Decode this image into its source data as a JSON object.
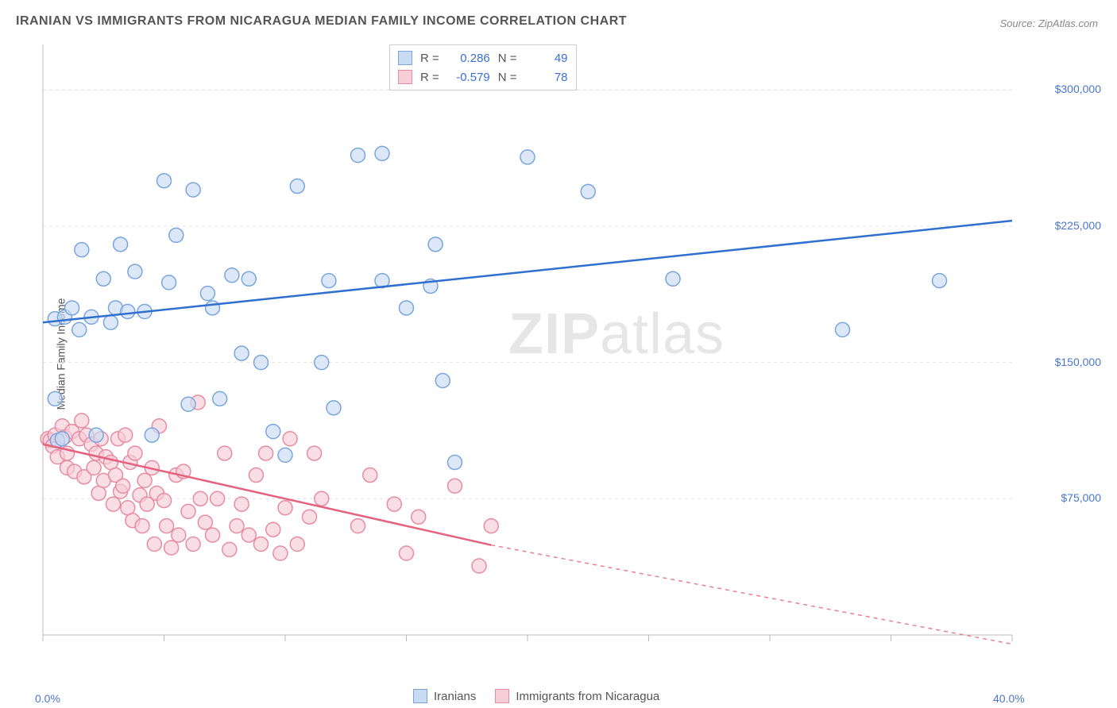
{
  "title": "IRANIAN VS IMMIGRANTS FROM NICARAGUA MEDIAN FAMILY INCOME CORRELATION CHART",
  "source": "Source: ZipAtlas.com",
  "y_axis_label": "Median Family Income",
  "watermark_bold": "ZIP",
  "watermark_rest": "atlas",
  "chart": {
    "type": "scatter",
    "background_color": "#ffffff",
    "plot_border_color": "#bbbbbb",
    "grid_color": "#e2e2e2",
    "grid_dash": "4,4",
    "xlim": [
      0,
      40
    ],
    "ylim": [
      0,
      325000
    ],
    "x_ticks": [
      0,
      5,
      10,
      15,
      20,
      25,
      30,
      35,
      40
    ],
    "x_tick_labels_shown": {
      "0": "0.0%",
      "40": "40.0%"
    },
    "y_ticks": [
      75000,
      150000,
      225000,
      300000
    ],
    "y_tick_labels": {
      "75000": "$75,000",
      "150000": "$150,000",
      "225000": "$225,000",
      "300000": "$300,000"
    },
    "tick_label_color": "#4a76d0",
    "tick_label_fontsize": 14,
    "axis_label_fontsize": 14,
    "axis_label_color": "#555555",
    "marker_radius": 9,
    "marker_stroke_width": 1.5,
    "trend_line_width": 2.5
  },
  "series": [
    {
      "name": "Iranians",
      "fill": "#c9dbf3",
      "stroke": "#7aa5dd",
      "fill_opacity": 0.65,
      "trend_color": "#2f6fd0",
      "trend": {
        "x1": 0,
        "y1": 172000,
        "x2": 40,
        "y2": 228000,
        "dashed_from_x": null
      },
      "stats": {
        "R": "0.286",
        "N": "49"
      },
      "points": [
        [
          0.5,
          174000
        ],
        [
          0.5,
          130000
        ],
        [
          0.6,
          107000
        ],
        [
          0.8,
          108000
        ],
        [
          0.9,
          175000
        ],
        [
          1.2,
          180000
        ],
        [
          1.5,
          168000
        ],
        [
          1.6,
          212000
        ],
        [
          2.0,
          175000
        ],
        [
          2.2,
          110000
        ],
        [
          2.5,
          196000
        ],
        [
          2.8,
          172000
        ],
        [
          3.0,
          180000
        ],
        [
          3.2,
          215000
        ],
        [
          3.5,
          178000
        ],
        [
          3.8,
          200000
        ],
        [
          4.2,
          178000
        ],
        [
          4.5,
          110000
        ],
        [
          5.0,
          250000
        ],
        [
          5.2,
          194000
        ],
        [
          5.5,
          220000
        ],
        [
          6.2,
          245000
        ],
        [
          6.8,
          188000
        ],
        [
          7.0,
          180000
        ],
        [
          7.3,
          130000
        ],
        [
          7.8,
          198000
        ],
        [
          8.2,
          155000
        ],
        [
          8.5,
          196000
        ],
        [
          9.0,
          150000
        ],
        [
          9.5,
          112000
        ],
        [
          10.0,
          99000
        ],
        [
          10.5,
          247000
        ],
        [
          11.5,
          150000
        ],
        [
          11.8,
          195000
        ],
        [
          12.0,
          125000
        ],
        [
          13.0,
          264000
        ],
        [
          14.0,
          265000
        ],
        [
          14.0,
          195000
        ],
        [
          15.0,
          180000
        ],
        [
          16.0,
          192000
        ],
        [
          16.2,
          215000
        ],
        [
          16.5,
          140000
        ],
        [
          17.0,
          95000
        ],
        [
          20.0,
          263000
        ],
        [
          22.5,
          244000
        ],
        [
          26.0,
          196000
        ],
        [
          33.0,
          168000
        ],
        [
          37.0,
          195000
        ],
        [
          6.0,
          127000
        ]
      ]
    },
    {
      "name": "Immigrants from Nicaragua",
      "fill": "#f7cdd7",
      "stroke": "#e78ca3",
      "fill_opacity": 0.65,
      "trend_color": "#e4617f",
      "trend": {
        "x1": 0,
        "y1": 105000,
        "x2": 40,
        "y2": -15000,
        "dashed_from_x": 18.5
      },
      "stats": {
        "R": "-0.579",
        "N": "78"
      },
      "points": [
        [
          0.2,
          108000
        ],
        [
          0.3,
          107000
        ],
        [
          0.4,
          104000
        ],
        [
          0.5,
          110000
        ],
        [
          0.6,
          98000
        ],
        [
          0.8,
          115000
        ],
        [
          0.9,
          109000
        ],
        [
          1.0,
          100000
        ],
        [
          1.0,
          92000
        ],
        [
          1.2,
          112000
        ],
        [
          1.3,
          90000
        ],
        [
          1.5,
          108000
        ],
        [
          1.6,
          118000
        ],
        [
          1.7,
          87000
        ],
        [
          1.8,
          110000
        ],
        [
          2.0,
          105000
        ],
        [
          2.1,
          92000
        ],
        [
          2.2,
          100000
        ],
        [
          2.3,
          78000
        ],
        [
          2.4,
          108000
        ],
        [
          2.5,
          85000
        ],
        [
          2.6,
          98000
        ],
        [
          2.8,
          95000
        ],
        [
          2.9,
          72000
        ],
        [
          3.0,
          88000
        ],
        [
          3.1,
          108000
        ],
        [
          3.2,
          79000
        ],
        [
          3.3,
          82000
        ],
        [
          3.4,
          110000
        ],
        [
          3.5,
          70000
        ],
        [
          3.6,
          95000
        ],
        [
          3.7,
          63000
        ],
        [
          3.8,
          100000
        ],
        [
          4.0,
          77000
        ],
        [
          4.1,
          60000
        ],
        [
          4.2,
          85000
        ],
        [
          4.3,
          72000
        ],
        [
          4.5,
          92000
        ],
        [
          4.6,
          50000
        ],
        [
          4.7,
          78000
        ],
        [
          4.8,
          115000
        ],
        [
          5.0,
          74000
        ],
        [
          5.1,
          60000
        ],
        [
          5.3,
          48000
        ],
        [
          5.5,
          88000
        ],
        [
          5.6,
          55000
        ],
        [
          5.8,
          90000
        ],
        [
          6.0,
          68000
        ],
        [
          6.2,
          50000
        ],
        [
          6.4,
          128000
        ],
        [
          6.5,
          75000
        ],
        [
          6.7,
          62000
        ],
        [
          7.0,
          55000
        ],
        [
          7.2,
          75000
        ],
        [
          7.5,
          100000
        ],
        [
          7.7,
          47000
        ],
        [
          8.0,
          60000
        ],
        [
          8.2,
          72000
        ],
        [
          8.5,
          55000
        ],
        [
          8.8,
          88000
        ],
        [
          9.0,
          50000
        ],
        [
          9.2,
          100000
        ],
        [
          9.5,
          58000
        ],
        [
          9.8,
          45000
        ],
        [
          10.0,
          70000
        ],
        [
          10.2,
          108000
        ],
        [
          10.5,
          50000
        ],
        [
          11.0,
          65000
        ],
        [
          11.2,
          100000
        ],
        [
          11.5,
          75000
        ],
        [
          13.0,
          60000
        ],
        [
          13.5,
          88000
        ],
        [
          14.5,
          72000
        ],
        [
          15.0,
          45000
        ],
        [
          15.5,
          65000
        ],
        [
          17.0,
          82000
        ],
        [
          18.0,
          38000
        ],
        [
          18.5,
          60000
        ]
      ]
    }
  ],
  "stat_legend": {
    "r_label": "R  =",
    "n_label": "N  ="
  },
  "bottom_legend": {
    "items": [
      "Iranians",
      "Immigrants from Nicaragua"
    ]
  }
}
